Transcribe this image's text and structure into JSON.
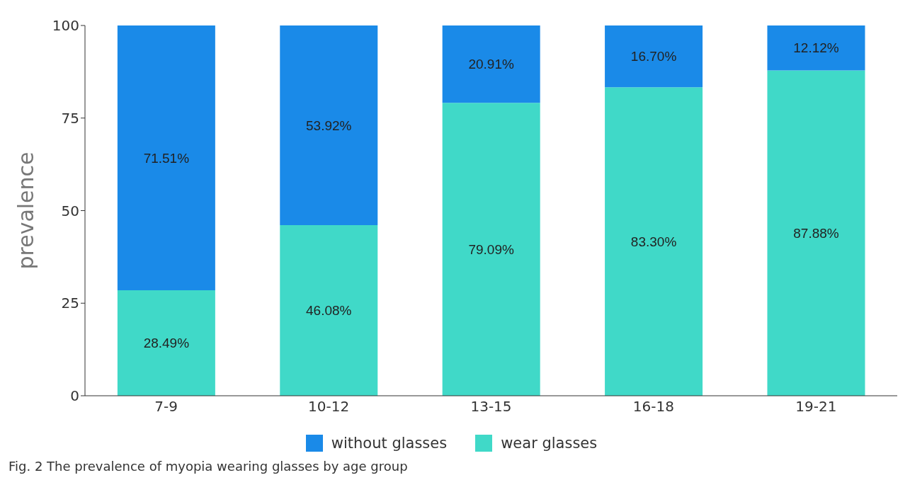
{
  "chart_data": {
    "type": "bar",
    "stacked": true,
    "ylabel": "prevalence",
    "categories": [
      "7-9",
      "10-12",
      "13-15",
      "16-18",
      "19-21"
    ],
    "series": [
      {
        "name": "wear glasses",
        "color": "#40d9c8",
        "values": [
          28.49,
          46.08,
          79.09,
          83.3,
          87.88
        ],
        "value_labels": [
          "28.49%",
          "46.08%",
          "79.09%",
          "83.30%",
          "87.88%"
        ]
      },
      {
        "name": "without glasses",
        "color": "#1a8ae8",
        "values": [
          71.51,
          53.92,
          20.91,
          16.7,
          12.12
        ],
        "value_labels": [
          "71.51%",
          "53.92%",
          "20.91%",
          "16.70%",
          "12.12%"
        ]
      }
    ],
    "ylim": [
      0,
      100
    ],
    "yticks": [
      0,
      25,
      50,
      75,
      100
    ],
    "grid": false,
    "legend": "bottom",
    "annotations": [
      "Fig. 2  The prevalence of myopia wearing glasses by age group"
    ]
  }
}
